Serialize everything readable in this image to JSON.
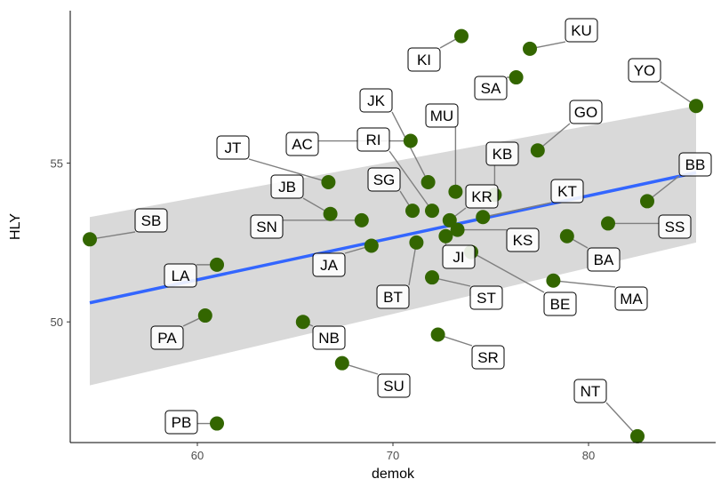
{
  "chart_data": {
    "type": "scatter",
    "xlabel": "demok",
    "ylabel": "HLY",
    "xlim": [
      53.5,
      86.5
    ],
    "ylim": [
      46.2,
      59.8
    ],
    "xticks": [
      60,
      70,
      80
    ],
    "yticks": [
      50,
      55
    ],
    "grid": false,
    "point_color": "#336600",
    "line_color": "#3366ff",
    "band_color": "#d9d9d9",
    "trend": {
      "method": "lm",
      "x": [
        54.5,
        85.5
      ],
      "y": [
        50.6,
        54.7
      ],
      "ci_lower": [
        48.0,
        52.5
      ],
      "ci_upper": [
        53.3,
        56.8
      ]
    },
    "points": [
      {
        "label": "SB",
        "x": 54.5,
        "y": 52.6
      },
      {
        "label": "LA",
        "x": 61.0,
        "y": 51.8
      },
      {
        "label": "PA",
        "x": 60.4,
        "y": 50.2
      },
      {
        "label": "PB",
        "x": 61.0,
        "y": 46.8
      },
      {
        "label": "JT",
        "x": 66.7,
        "y": 54.4
      },
      {
        "label": "JB",
        "x": 66.8,
        "y": 53.4
      },
      {
        "label": "SN",
        "x": 68.4,
        "y": 53.2
      },
      {
        "label": "JA",
        "x": 68.9,
        "y": 52.4
      },
      {
        "label": "NB",
        "x": 65.4,
        "y": 50.0
      },
      {
        "label": "SU",
        "x": 67.4,
        "y": 48.7
      },
      {
        "label": "AC",
        "x": 70.9,
        "y": 55.7
      },
      {
        "label": "JK",
        "x": 71.8,
        "y": 54.4
      },
      {
        "label": "RI",
        "x": 72.0,
        "y": 53.5
      },
      {
        "label": "SG",
        "x": 71.0,
        "y": 53.5
      },
      {
        "label": "BT",
        "x": 71.2,
        "y": 52.5
      },
      {
        "label": "MU",
        "x": 73.2,
        "y": 54.1
      },
      {
        "label": "KI",
        "x": 73.5,
        "y": 59.0
      },
      {
        "label": "KR",
        "x": 72.9,
        "y": 53.2
      },
      {
        "label": "JI",
        "x": 72.7,
        "y": 52.7
      },
      {
        "label": "ST",
        "x": 72.0,
        "y": 51.4
      },
      {
        "label": "SR",
        "x": 72.3,
        "y": 49.6
      },
      {
        "label": "KS",
        "x": 73.3,
        "y": 52.9
      },
      {
        "label": "BE",
        "x": 74.0,
        "y": 52.2
      },
      {
        "label": "SA",
        "x": 76.3,
        "y": 57.7
      },
      {
        "label": "KU",
        "x": 77.0,
        "y": 58.6
      },
      {
        "label": "KB",
        "x": 75.2,
        "y": 54.0
      },
      {
        "label": "KT",
        "x": 74.6,
        "y": 53.3
      },
      {
        "label": "GO",
        "x": 77.4,
        "y": 55.4
      },
      {
        "label": "BA",
        "x": 78.9,
        "y": 52.7
      },
      {
        "label": "MA",
        "x": 78.2,
        "y": 51.3
      },
      {
        "label": "SS",
        "x": 81.0,
        "y": 53.1
      },
      {
        "label": "BB",
        "x": 83.0,
        "y": 53.8
      },
      {
        "label": "YO",
        "x": 85.5,
        "y": 56.8
      },
      {
        "label": "NT",
        "x": 82.5,
        "y": 46.4
      }
    ]
  }
}
